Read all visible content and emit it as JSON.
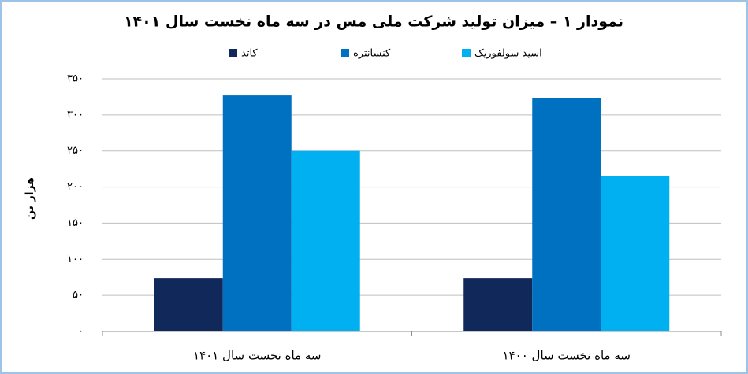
{
  "chart_data": {
    "type": "bar",
    "title": "نمودار ۱ – میزان تولید شرکت ملی مس در سه ماه نخست سال ۱۴۰۱",
    "y_label": "هزار تن",
    "categories": [
      "سه ماه نخست سال ۱۴۰۱",
      "سه ماه نخست سال ۱۴۰۰"
    ],
    "series": [
      {
        "name": "کاتد",
        "color": "#10285a",
        "values": [
          74,
          74
        ]
      },
      {
        "name": "کنسانتره",
        "color": "#0070c0",
        "values": [
          327,
          323
        ]
      },
      {
        "name": "اسید سولفوریک",
        "color": "#00b0f0",
        "values": [
          250,
          215
        ]
      }
    ],
    "ylim": [
      0,
      350
    ],
    "yticks": [
      {
        "value": 0,
        "label": "۰"
      },
      {
        "value": 50,
        "label": "۵۰"
      },
      {
        "value": 100,
        "label": "۱۰۰"
      },
      {
        "value": 150,
        "label": "۱۵۰"
      },
      {
        "value": 200,
        "label": "۲۰۰"
      },
      {
        "value": 250,
        "label": "۲۵۰"
      },
      {
        "value": 300,
        "label": "۳۰۰"
      },
      {
        "value": 350,
        "label": "۳۵۰"
      }
    ],
    "grid": true
  }
}
